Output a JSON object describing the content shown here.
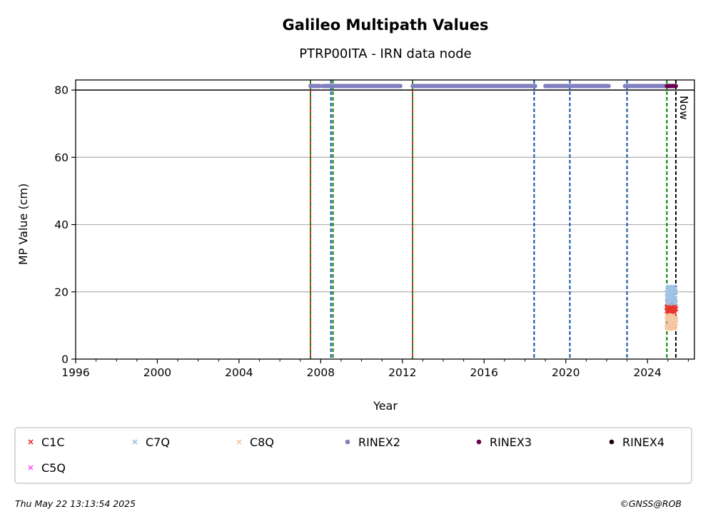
{
  "chart_data": {
    "type": "scatter",
    "title": "Galileo Multipath Values",
    "subtitle": "PTRP00ITA - IRN data node",
    "xlabel": "Year",
    "ylabel": "MP Value (cm)",
    "xlim": [
      1996,
      2026.3
    ],
    "ylim": [
      0,
      83
    ],
    "x_ticks": [
      "1996",
      "2000",
      "2004",
      "2008",
      "2012",
      "2016",
      "2020",
      "2024"
    ],
    "y_ticks": [
      "0",
      "20",
      "40",
      "60",
      "80"
    ],
    "grid": "horizontal",
    "reference_line_y": 80,
    "now_label": "Now",
    "now_x": 2025.39,
    "legend_position": "below",
    "legend": [
      {
        "label": "C1C",
        "marker": "x",
        "color": "#e8362d"
      },
      {
        "label": "C7Q",
        "marker": "x",
        "color": "#9ec3e6"
      },
      {
        "label": "C8Q",
        "marker": "x",
        "color": "#f4c8a4"
      },
      {
        "label": "RINEX2",
        "marker": "dot",
        "color": "#8080c0"
      },
      {
        "label": "RINEX3",
        "marker": "dot",
        "color": "#6a0050"
      },
      {
        "label": "RINEX4",
        "marker": "dot",
        "color": "#1a0010"
      },
      {
        "label": "C5Q",
        "marker": "x",
        "color": "#f060f0"
      }
    ],
    "event_lines": [
      {
        "x": 2007.5,
        "style": "red-green"
      },
      {
        "x": 2008.5,
        "style": "blue"
      },
      {
        "x": 2008.6,
        "style": "green"
      },
      {
        "x": 2012.5,
        "style": "red-green"
      },
      {
        "x": 2018.45,
        "style": "blue"
      },
      {
        "x": 2020.2,
        "style": "blue"
      },
      {
        "x": 2023.0,
        "style": "blue"
      },
      {
        "x": 2024.95,
        "style": "green"
      }
    ],
    "series": [
      {
        "name": "C1C",
        "color": "#e8362d",
        "marker": "x",
        "x_range": [
          2024.95,
          2025.39
        ],
        "y_center": 15,
        "y_spread": 2
      },
      {
        "name": "C7Q",
        "color": "#9ec3e6",
        "marker": "x",
        "x_range": [
          2024.95,
          2025.39
        ],
        "y_center": 19,
        "y_spread": 2.5
      },
      {
        "name": "C8Q",
        "color": "#f4c8a4",
        "marker": "x",
        "x_range": [
          2024.95,
          2025.39
        ],
        "y_center": 11,
        "y_spread": 2
      },
      {
        "name": "RINEX2",
        "color": "#8080c0",
        "marker": "dot",
        "y": 81.2,
        "segments": [
          [
            2007.5,
            2007.95
          ],
          [
            2008.1,
            2011.9
          ],
          [
            2012.5,
            2018.5
          ],
          [
            2019.0,
            2022.1
          ],
          [
            2022.9,
            2024.9
          ]
        ]
      },
      {
        "name": "RINEX3",
        "color": "#6a0050",
        "marker": "dot",
        "y": 81.2,
        "segments": [
          [
            2024.95,
            2025.39
          ]
        ]
      }
    ]
  },
  "footer": {
    "timestamp": "Thu May 22 13:13:54 2025",
    "copyright": "©GNSS@ROB"
  }
}
